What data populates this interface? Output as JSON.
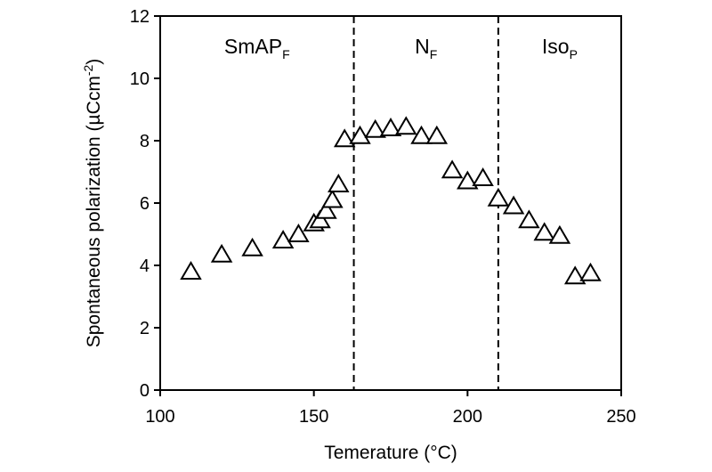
{
  "chart_data": {
    "type": "scatter",
    "title": "",
    "xlabel": "Temerature (°C)",
    "ylabel": "Spontaneous polarization (µCcm",
    "ylabel_superscript": "-2",
    "ylabel_suffix": ")",
    "xlim": [
      100,
      250
    ],
    "ylim": [
      0,
      12
    ],
    "xticks": [
      100,
      150,
      200,
      250
    ],
    "yticks": [
      0,
      2,
      4,
      6,
      8,
      10,
      12
    ],
    "grid": false,
    "marker": "open-triangle",
    "series": [
      {
        "points": [
          [
            110,
            3.8
          ],
          [
            120,
            4.35
          ],
          [
            130,
            4.55
          ],
          [
            140,
            4.8
          ],
          [
            145,
            5.0
          ],
          [
            150,
            5.35
          ],
          [
            152,
            5.45
          ],
          [
            154,
            5.75
          ],
          [
            156,
            6.1
          ],
          [
            158,
            6.6
          ],
          [
            160,
            8.05
          ],
          [
            165,
            8.15
          ],
          [
            170,
            8.35
          ],
          [
            175,
            8.4
          ],
          [
            180,
            8.45
          ],
          [
            185,
            8.15
          ],
          [
            190,
            8.15
          ],
          [
            195,
            7.05
          ],
          [
            200,
            6.7
          ],
          [
            205,
            6.8
          ],
          [
            210,
            6.15
          ],
          [
            215,
            5.9
          ],
          [
            220,
            5.45
          ],
          [
            225,
            5.05
          ],
          [
            230,
            4.95
          ],
          [
            235,
            3.65
          ],
          [
            240,
            3.75
          ]
        ]
      }
    ],
    "phase_boundaries": [
      163,
      210
    ],
    "phases": [
      {
        "label": "SmAP",
        "sub": "F",
        "range": [
          100,
          163
        ]
      },
      {
        "label": "N",
        "sub": "F",
        "range": [
          163,
          210
        ]
      },
      {
        "label": "Iso",
        "sub": "P",
        "range": [
          210,
          250
        ]
      }
    ]
  }
}
